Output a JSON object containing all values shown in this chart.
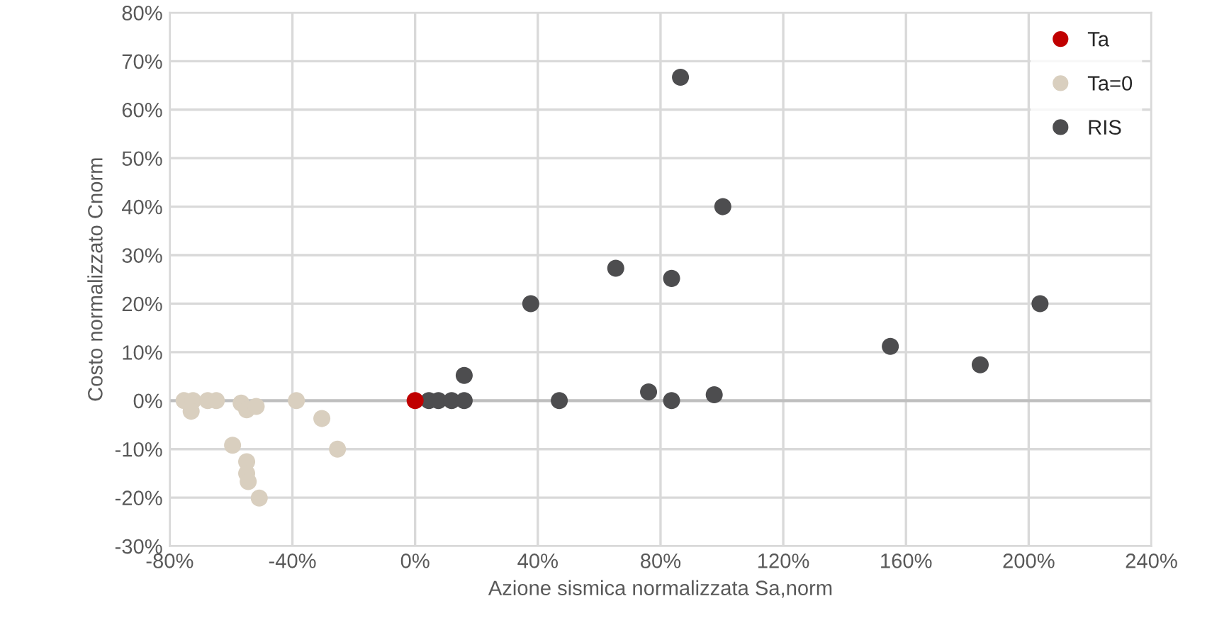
{
  "chart_data": {
    "type": "scatter",
    "xlabel": "Azione sismica normalizzata Sa,norm",
    "ylabel": "Costo normalizzato Cnorm",
    "xlim": [
      -80,
      240
    ],
    "ylim": [
      -30,
      80
    ],
    "xticks": [
      {
        "value": -80,
        "label": "-80%"
      },
      {
        "value": -40,
        "label": "-40%"
      },
      {
        "value": 0,
        "label": "0%"
      },
      {
        "value": 40,
        "label": "40%"
      },
      {
        "value": 80,
        "label": "80%"
      },
      {
        "value": 120,
        "label": "120%"
      },
      {
        "value": 160,
        "label": "160%"
      },
      {
        "value": 200,
        "label": "200%"
      },
      {
        "value": 240,
        "label": "240%"
      }
    ],
    "yticks": [
      {
        "value": -30,
        "label": "-30%"
      },
      {
        "value": -20,
        "label": "-20%"
      },
      {
        "value": -10,
        "label": "-10%"
      },
      {
        "value": 0,
        "label": "0%"
      },
      {
        "value": 10,
        "label": "10%"
      },
      {
        "value": 20,
        "label": "20%"
      },
      {
        "value": 30,
        "label": "30%"
      },
      {
        "value": 40,
        "label": "40%"
      },
      {
        "value": 50,
        "label": "50%"
      },
      {
        "value": 60,
        "label": "60%"
      },
      {
        "value": 70,
        "label": "70%"
      },
      {
        "value": 80,
        "label": "80%"
      }
    ],
    "grid": true,
    "legend": "top right",
    "marker": "circle",
    "series": [
      {
        "name": "Ta=0",
        "color": "#d9cfbf",
        "x": [
          -75.3,
          -72.4,
          -73,
          -67.6,
          -64.8,
          -56.7,
          -54.9,
          -51.8,
          -38.7,
          -30.4,
          -25.3,
          -59.5,
          -54.9,
          -54.9,
          -54.4,
          -50.8
        ],
        "values": [
          0,
          0,
          -2.2,
          0,
          0,
          -0.5,
          -1.9,
          -1.2,
          0,
          -3.7,
          -10,
          -9.2,
          -12.6,
          -15,
          -16.7,
          -20.1
        ]
      },
      {
        "name": "RIS",
        "color": "#4d4d4f",
        "x": [
          4.5,
          7.6,
          11.9,
          16,
          16,
          37.7,
          47,
          65.4,
          76.1,
          83.6,
          83.6,
          86.5,
          97.5,
          100.3,
          154.9,
          184.2,
          203.7
        ],
        "values": [
          0,
          0,
          0,
          0,
          5.2,
          20,
          0,
          27.3,
          1.8,
          0,
          25.2,
          66.7,
          1.2,
          40,
          11.2,
          7.4,
          20
        ]
      },
      {
        "name": "Ta",
        "color": "#c00000",
        "x": [
          0
        ],
        "values": [
          0
        ]
      }
    ]
  }
}
